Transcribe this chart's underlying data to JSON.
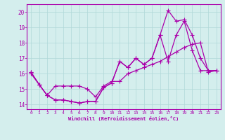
{
  "xlabel": "Windchill (Refroidissement éolien,°C)",
  "background_color": "#d4eeed",
  "line_color": "#aa00aa",
  "grid_color": "#b0d8d8",
  "xlim": [
    -0.5,
    23.5
  ],
  "ylim": [
    13.7,
    20.5
  ],
  "yticks": [
    14,
    15,
    16,
    17,
    18,
    19,
    20
  ],
  "xticks": [
    0,
    1,
    2,
    3,
    4,
    5,
    6,
    7,
    8,
    9,
    10,
    11,
    12,
    13,
    14,
    15,
    16,
    17,
    18,
    19,
    20,
    21,
    22,
    23
  ],
  "series1_x": [
    0,
    1,
    2,
    3,
    4,
    5,
    6,
    7,
    8,
    9,
    10,
    11,
    12,
    13,
    14,
    15,
    16,
    17,
    18,
    19,
    20,
    21,
    22,
    23
  ],
  "series1_y": [
    16.1,
    15.3,
    14.6,
    14.3,
    14.3,
    14.2,
    14.1,
    14.2,
    14.2,
    15.1,
    15.4,
    16.8,
    16.4,
    17.0,
    16.6,
    17.0,
    18.5,
    16.8,
    18.5,
    19.4,
    17.5,
    16.2,
    16.2,
    16.2
  ],
  "series2_x": [
    0,
    1,
    2,
    3,
    4,
    5,
    6,
    7,
    8,
    9,
    10,
    11,
    12,
    13,
    14,
    15,
    16,
    17,
    18,
    19,
    20,
    21,
    22,
    23
  ],
  "series2_y": [
    16.1,
    15.3,
    14.6,
    14.3,
    14.3,
    14.2,
    14.1,
    14.2,
    14.2,
    15.1,
    15.4,
    16.8,
    16.4,
    17.0,
    16.6,
    17.0,
    18.5,
    20.1,
    19.4,
    19.5,
    18.5,
    17.0,
    16.2,
    16.2
  ],
  "series3_x": [
    0,
    1,
    2,
    3,
    4,
    5,
    6,
    7,
    8,
    9,
    10,
    11,
    12,
    13,
    14,
    15,
    16,
    17,
    18,
    19,
    20,
    21,
    22,
    23
  ],
  "series3_y": [
    16.0,
    15.3,
    14.6,
    15.2,
    15.2,
    15.2,
    15.2,
    15.0,
    14.5,
    15.2,
    15.5,
    15.5,
    16.0,
    16.2,
    16.4,
    16.6,
    16.8,
    17.1,
    17.4,
    17.7,
    17.9,
    18.0,
    16.1,
    16.2
  ]
}
